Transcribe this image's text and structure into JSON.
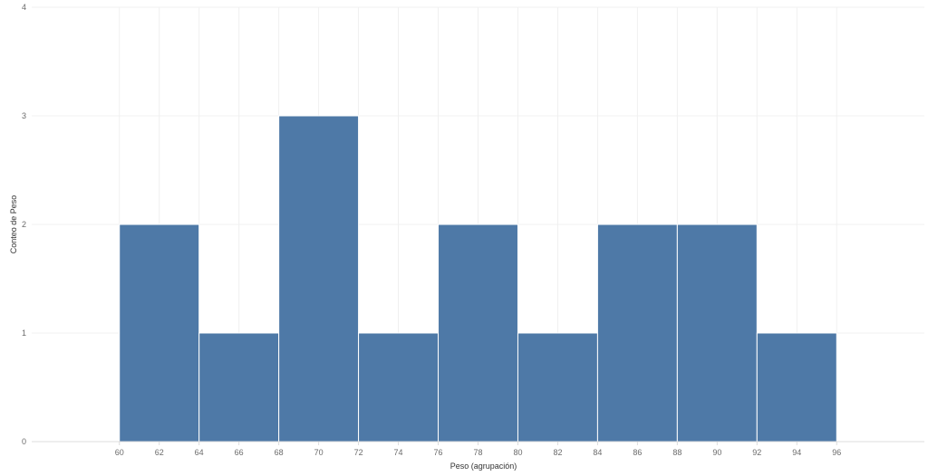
{
  "chart_data": {
    "type": "bar",
    "histogram": true,
    "bin_width": 4,
    "bins": [
      {
        "start": 60,
        "end": 64,
        "count": 2
      },
      {
        "start": 64,
        "end": 68,
        "count": 1
      },
      {
        "start": 68,
        "end": 72,
        "count": 3
      },
      {
        "start": 72,
        "end": 76,
        "count": 1
      },
      {
        "start": 76,
        "end": 80,
        "count": 2
      },
      {
        "start": 80,
        "end": 84,
        "count": 1
      },
      {
        "start": 84,
        "end": 88,
        "count": 2
      },
      {
        "start": 88,
        "end": 92,
        "count": 2
      },
      {
        "start": 92,
        "end": 96,
        "count": 1
      }
    ],
    "xlabel": "Peso (agrupación)",
    "ylabel": "Conteo de Peso",
    "xlim": [
      55.6,
      100.4
    ],
    "ylim": [
      0,
      4
    ],
    "x_ticks": [
      60,
      62,
      64,
      66,
      68,
      70,
      72,
      74,
      76,
      78,
      80,
      82,
      84,
      86,
      88,
      90,
      92,
      94,
      96
    ],
    "y_ticks": [
      0,
      1,
      2,
      3,
      4
    ],
    "bar_color": "#4e79a7",
    "grid": true,
    "legend": "none"
  }
}
